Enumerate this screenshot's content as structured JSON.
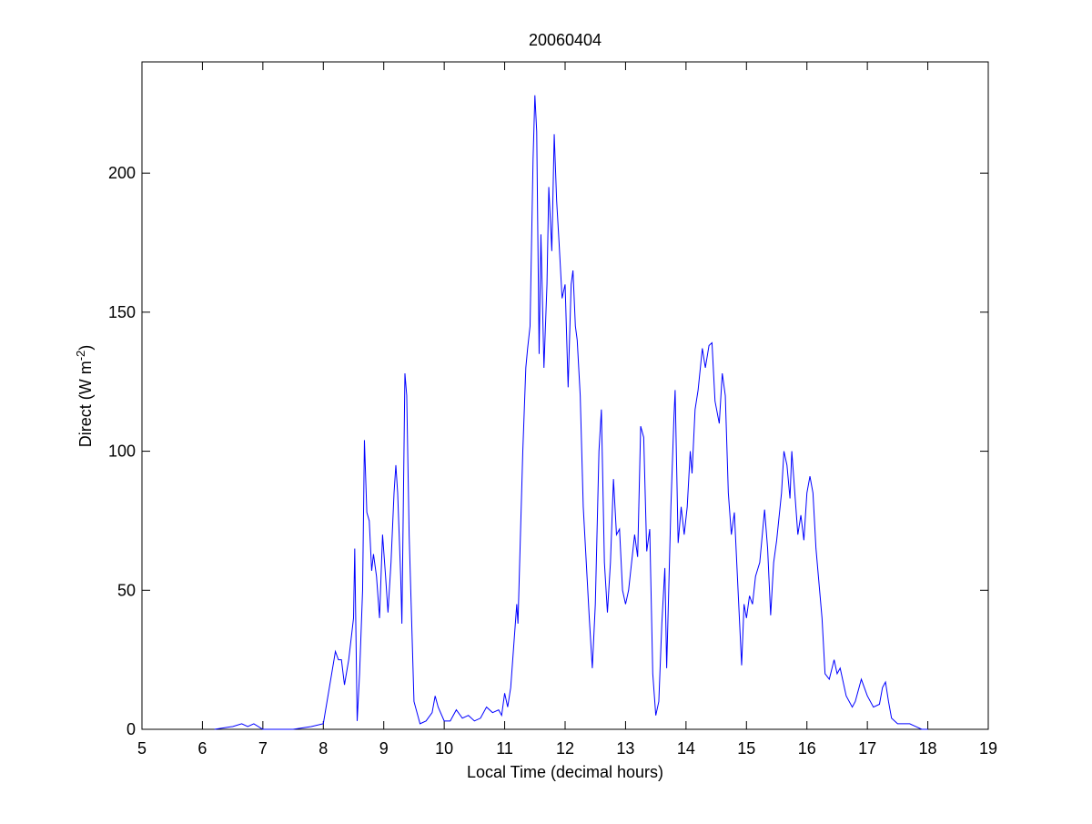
{
  "chart_data": {
    "type": "line",
    "title": "20060404",
    "xlabel": "Local Time (decimal hours)",
    "ylabel": {
      "text": "Direct (W m",
      "superscript": "-2",
      "suffix": ")"
    },
    "xlim": [
      5,
      19
    ],
    "xticks": [
      5,
      6,
      7,
      8,
      9,
      10,
      11,
      12,
      13,
      14,
      15,
      16,
      17,
      18,
      19
    ],
    "ylim": [
      0,
      240
    ],
    "yticks": [
      0,
      50,
      100,
      150,
      200
    ],
    "grid": false,
    "series": [
      {
        "color": "#0000ff",
        "x": [
          6.2,
          6.5,
          6.65,
          6.75,
          6.85,
          7.0,
          7.5,
          7.8,
          8.0,
          8.1,
          8.2,
          8.25,
          8.3,
          8.35,
          8.42,
          8.5,
          8.52,
          8.56,
          8.6,
          8.65,
          8.68,
          8.72,
          8.76,
          8.8,
          8.83,
          8.88,
          8.93,
          8.98,
          9.03,
          9.07,
          9.12,
          9.17,
          9.2,
          9.23,
          9.28,
          9.3,
          9.35,
          9.38,
          9.42,
          9.5,
          9.6,
          9.7,
          9.8,
          9.85,
          9.9,
          10.0,
          10.1,
          10.2,
          10.3,
          10.4,
          10.5,
          10.6,
          10.7,
          10.8,
          10.9,
          10.95,
          11.0,
          11.05,
          11.1,
          11.2,
          11.22,
          11.3,
          11.35,
          11.38,
          11.42,
          11.47,
          11.5,
          11.53,
          11.57,
          11.6,
          11.65,
          11.7,
          11.73,
          11.78,
          11.82,
          11.86,
          11.9,
          11.95,
          12.0,
          12.05,
          12.1,
          12.13,
          12.17,
          12.2,
          12.25,
          12.3,
          12.4,
          12.45,
          12.5,
          12.56,
          12.6,
          12.65,
          12.7,
          12.75,
          12.8,
          12.85,
          12.9,
          12.95,
          13.0,
          13.05,
          13.1,
          13.15,
          13.2,
          13.25,
          13.3,
          13.35,
          13.4,
          13.45,
          13.5,
          13.55,
          13.6,
          13.65,
          13.68,
          13.75,
          13.8,
          13.82,
          13.87,
          13.92,
          13.97,
          14.02,
          14.07,
          14.1,
          14.15,
          14.2,
          14.27,
          14.32,
          14.38,
          14.43,
          14.48,
          14.55,
          14.6,
          14.65,
          14.7,
          14.75,
          14.8,
          14.85,
          14.92,
          14.96,
          15.0,
          15.05,
          15.1,
          15.15,
          15.22,
          15.3,
          15.35,
          15.4,
          15.45,
          15.5,
          15.58,
          15.62,
          15.67,
          15.72,
          15.75,
          15.8,
          15.85,
          15.9,
          15.95,
          16.0,
          16.05,
          16.1,
          16.15,
          16.25,
          16.3,
          16.37,
          16.45,
          16.5,
          16.55,
          16.65,
          16.75,
          16.8,
          16.9,
          16.95,
          17.0,
          17.1,
          17.2,
          17.25,
          17.3,
          17.35,
          17.4,
          17.5,
          17.7,
          17.8,
          17.9,
          18.0
        ],
        "values": [
          0,
          1,
          2,
          1,
          2,
          0,
          0,
          1,
          2,
          15,
          28,
          25,
          25,
          16,
          25,
          40,
          65,
          3,
          20,
          50,
          104,
          78,
          75,
          57,
          63,
          55,
          40,
          70,
          55,
          42,
          60,
          85,
          95,
          85,
          55,
          38,
          128,
          120,
          70,
          10,
          2,
          3,
          6,
          12,
          8,
          3,
          3,
          7,
          4,
          5,
          3,
          4,
          8,
          6,
          7,
          5,
          13,
          8,
          15,
          45,
          38,
          100,
          130,
          137,
          145,
          205,
          228,
          215,
          135,
          178,
          130,
          160,
          195,
          172,
          214,
          190,
          175,
          155,
          160,
          123,
          160,
          165,
          145,
          140,
          120,
          80,
          40,
          22,
          45,
          100,
          115,
          60,
          42,
          60,
          90,
          70,
          72,
          50,
          45,
          50,
          60,
          70,
          62,
          109,
          105,
          64,
          72,
          20,
          5,
          10,
          38,
          58,
          22,
          80,
          112,
          122,
          67,
          80,
          70,
          80,
          100,
          92,
          115,
          122,
          137,
          130,
          138,
          139,
          118,
          110,
          128,
          120,
          85,
          70,
          78,
          55,
          23,
          45,
          40,
          48,
          45,
          55,
          60,
          79,
          65,
          41,
          60,
          68,
          85,
          100,
          95,
          83,
          100,
          85,
          70,
          77,
          68,
          85,
          91,
          85,
          65,
          40,
          20,
          18,
          25,
          20,
          22,
          12,
          8,
          10,
          18,
          15,
          12,
          8,
          9,
          15,
          17,
          10,
          4,
          2,
          2,
          1,
          0,
          0
        ]
      }
    ]
  }
}
